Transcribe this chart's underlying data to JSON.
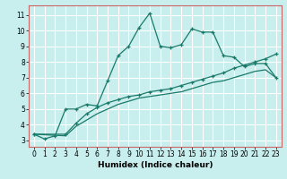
{
  "title": "",
  "xlabel": "Humidex (Indice chaleur)",
  "bg_color": "#c8eeee",
  "grid_color": "#ffffff",
  "line_color": "#1a7a6a",
  "xlim": [
    -0.5,
    23.5
  ],
  "ylim": [
    2.6,
    11.6
  ],
  "xticks": [
    0,
    1,
    2,
    3,
    4,
    5,
    6,
    7,
    8,
    9,
    10,
    11,
    12,
    13,
    14,
    15,
    16,
    17,
    18,
    19,
    20,
    21,
    22,
    23
  ],
  "yticks": [
    3,
    4,
    5,
    6,
    7,
    8,
    9,
    10,
    11
  ],
  "line1_x": [
    0,
    1,
    2,
    3,
    4,
    5,
    6,
    7,
    8,
    9,
    10,
    11,
    12,
    13,
    14,
    15,
    16,
    17,
    18,
    19,
    20,
    21,
    22,
    23
  ],
  "line1_y": [
    3.4,
    3.1,
    3.3,
    5.0,
    5.0,
    5.3,
    5.2,
    6.8,
    8.4,
    9.0,
    10.2,
    11.1,
    9.0,
    8.9,
    9.1,
    10.1,
    9.9,
    9.9,
    8.4,
    8.3,
    7.7,
    7.9,
    7.9,
    7.0
  ],
  "line2_x": [
    0,
    3,
    4,
    5,
    6,
    7,
    8,
    9,
    10,
    11,
    12,
    13,
    14,
    15,
    16,
    17,
    18,
    19,
    20,
    21,
    22,
    23
  ],
  "line2_y": [
    3.4,
    3.4,
    4.1,
    4.7,
    5.1,
    5.4,
    5.6,
    5.8,
    5.9,
    6.1,
    6.2,
    6.3,
    6.5,
    6.7,
    6.9,
    7.1,
    7.3,
    7.6,
    7.8,
    8.0,
    8.2,
    8.5
  ],
  "line3_x": [
    0,
    3,
    4,
    5,
    6,
    7,
    8,
    9,
    10,
    11,
    12,
    13,
    14,
    15,
    16,
    17,
    18,
    19,
    20,
    21,
    22,
    23
  ],
  "line3_y": [
    3.4,
    3.3,
    3.9,
    4.3,
    4.7,
    5.0,
    5.3,
    5.5,
    5.7,
    5.8,
    5.9,
    6.0,
    6.1,
    6.3,
    6.5,
    6.7,
    6.8,
    7.0,
    7.2,
    7.4,
    7.5,
    7.0
  ],
  "xlabel_fontsize": 6.5,
  "tick_fontsize": 5.5
}
